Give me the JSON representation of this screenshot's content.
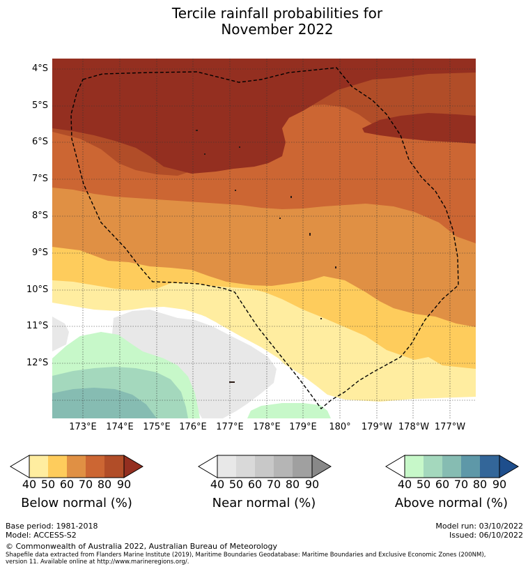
{
  "title": {
    "line1": "Tercile rainfall probabilities for",
    "line2": "November 2022"
  },
  "map": {
    "latitude_labels": [
      "4°S",
      "5°S",
      "6°S",
      "7°S",
      "8°S",
      "9°S",
      "10°S",
      "11°S",
      "12°S"
    ],
    "longitude_labels": [
      "173°E",
      "174°E",
      "175°E",
      "176°E",
      "177°E",
      "178°E",
      "179°E",
      "180°",
      "179°W",
      "178°W",
      "177°W"
    ]
  },
  "colorbars": [
    {
      "label": "Below normal (%)",
      "ticks": [
        "40",
        "50",
        "60",
        "70",
        "80",
        "90"
      ],
      "colors": [
        "#ffffff",
        "#ffeda0",
        "#fecc5c",
        "#e09044",
        "#cc6633",
        "#b14d28",
        "#942f20"
      ]
    },
    {
      "label": "Near normal (%)",
      "ticks": [
        "40",
        "50",
        "60",
        "70",
        "80",
        "90"
      ],
      "colors": [
        "#ffffff",
        "#e8e8e8",
        "#d9d9d9",
        "#c8c8c8",
        "#b5b5b5",
        "#a0a0a0",
        "#888888"
      ]
    },
    {
      "label": "Above normal (%)",
      "ticks": [
        "40",
        "50",
        "60",
        "70",
        "80",
        "90"
      ],
      "colors": [
        "#ffffff",
        "#c7f8c9",
        "#a4d8bd",
        "#86bcb2",
        "#5e98a8",
        "#336699",
        "#1e4e8c"
      ]
    }
  ],
  "footer": {
    "base_period": "Base period: 1981-2018",
    "model": "Model: ACCESS-S2",
    "model_run": "Model run: 03/10/2022",
    "issued": "Issued: 06/10/2022",
    "copyright": "© Commonwealth of Australia 2022, Australian Bureau of Meteorology",
    "source_line1": "Shapefile data extracted from Flanders Marine Institute (2019), Maritime Boundaries Geodatabase: Maritime Boundaries and Exclusive Economic Zones (200NM),",
    "source_line2": "version 11. Available online at http://www.marineregions.org/."
  }
}
